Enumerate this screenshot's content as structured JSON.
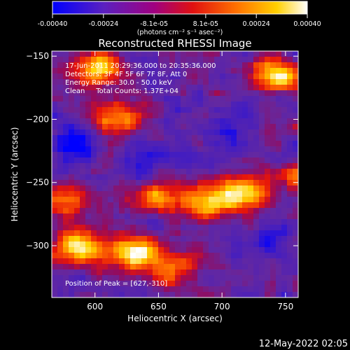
{
  "chart_data": {
    "type": "heatmap",
    "title": "Reconstructed RHESSI Image",
    "xlabel": "Heliocentric X (arcsec)",
    "ylabel": "Heliocentric Y (arcsec)",
    "xlim": [
      566,
      760
    ],
    "ylim": [
      -341,
      -146
    ],
    "xticks": [
      600,
      650,
      700,
      750
    ],
    "yticks": [
      -150,
      -200,
      -250,
      -300
    ],
    "colorbar": {
      "range": [
        -0.0004,
        0.0004
      ],
      "ticks": [
        -0.0004,
        -0.00024,
        -8.1e-05,
        8.1e-05,
        0.00024,
        0.0004
      ],
      "tick_labels": [
        "-0.00040",
        "-0.00024",
        "-8.1e-05",
        "8.1e-05",
        "0.00024",
        "0.00040"
      ],
      "unit": "(photons cm⁻² s⁻¹ asec⁻²)",
      "colors": [
        "#0000ff",
        "#6a1aa6",
        "#b00060",
        "#ff2a00",
        "#ff8a00",
        "#ffd600",
        "#ffffff"
      ]
    },
    "annotations": {
      "time_range": "17-Jun-2011 20:29:36.000 to 20:35:36.000",
      "detectors": "Detectors: 3F 4F 5F 6F 7F 8F, Att 0",
      "energy": "Energy Range: 30.0 - 50.0 keV",
      "clean": "Clean     Total Counts: 1.37E+04",
      "peak": "Position of Peak = [627,-310]"
    },
    "hotspots": [
      {
        "x": 632,
        "y": -305,
        "strength": 1.0
      },
      {
        "x": 588,
        "y": -300,
        "strength": 0.85
      },
      {
        "x": 745,
        "y": -165,
        "strength": 0.9
      },
      {
        "x": 715,
        "y": -258,
        "strength": 0.85
      },
      {
        "x": 690,
        "y": -265,
        "strength": 0.7
      },
      {
        "x": 600,
        "y": -160,
        "strength": 0.75
      },
      {
        "x": 616,
        "y": -200,
        "strength": 0.55
      },
      {
        "x": 648,
        "y": -262,
        "strength": 0.6
      },
      {
        "x": 760,
        "y": -245,
        "strength": 0.55
      },
      {
        "x": 663,
        "y": -318,
        "strength": 0.5
      },
      {
        "x": 575,
        "y": -265,
        "strength": 0.5
      }
    ],
    "coldspots": [
      {
        "x": 585,
        "y": -220,
        "strength": 0.9
      },
      {
        "x": 640,
        "y": -235,
        "strength": 0.6
      },
      {
        "x": 705,
        "y": -215,
        "strength": 0.55
      },
      {
        "x": 735,
        "y": -300,
        "strength": 0.6
      }
    ]
  },
  "footer": {
    "timestamp": "12-May-2022 02:05"
  }
}
